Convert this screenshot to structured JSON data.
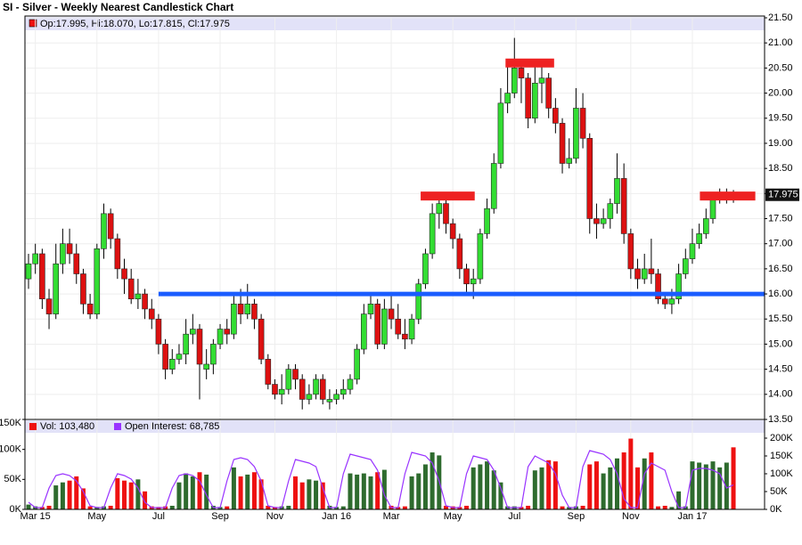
{
  "chart_data": {
    "type": "candlestick",
    "title": "SI - Silver - Weekly Nearest Candlestick Chart",
    "header": "Op:17.995, Hi:18.070, Lo:17.815, Cl:17.975",
    "categories": [
      null,
      "Mar 15",
      null,
      null,
      null,
      null,
      null,
      null,
      null,
      null,
      "May",
      null,
      null,
      null,
      null,
      null,
      null,
      null,
      null,
      "Jul",
      null,
      null,
      null,
      null,
      null,
      null,
      null,
      null,
      "Sep",
      null,
      null,
      null,
      null,
      null,
      null,
      null,
      "Nov",
      null,
      null,
      null,
      null,
      null,
      null,
      null,
      null,
      "Jan 16",
      null,
      null,
      null,
      null,
      null,
      null,
      null,
      "Mar",
      null,
      null,
      null,
      null,
      null,
      null,
      null,
      null,
      "May",
      null,
      null,
      null,
      null,
      null,
      null,
      null,
      null,
      "Jul",
      null,
      null,
      null,
      null,
      null,
      null,
      null,
      null,
      "Sep",
      null,
      null,
      null,
      null,
      null,
      null,
      null,
      "Nov",
      null,
      null,
      null,
      null,
      null,
      null,
      null,
      null,
      "Jan 17",
      null,
      null,
      null,
      null,
      null,
      null
    ],
    "open": [
      16.3,
      16.6,
      16.8,
      15.9,
      15.6,
      16.6,
      17.0,
      16.8,
      16.4,
      15.8,
      15.6,
      16.9,
      17.6,
      17.1,
      16.5,
      16.3,
      15.9,
      16.0,
      15.7,
      15.5,
      15.0,
      14.5,
      14.7,
      14.8,
      15.2,
      15.3,
      14.5,
      14.6,
      15.0,
      15.3,
      15.2,
      15.8,
      15.6,
      15.8,
      15.5,
      14.7,
      14.2,
      14.0,
      14.1,
      14.5,
      14.3,
      13.9,
      14.0,
      14.3,
      13.85,
      13.9,
      14.0,
      14.1,
      14.3,
      14.9,
      15.6,
      15.8,
      15.0,
      15.7,
      15.5,
      15.2,
      15.1,
      15.5,
      16.2,
      16.8,
      17.6,
      17.8,
      17.4,
      17.1,
      16.5,
      16.2,
      16.3,
      17.2,
      17.7,
      18.6,
      19.8,
      20.0,
      20.5,
      20.3,
      19.5,
      20.2,
      20.3,
      19.7,
      19.4,
      18.6,
      18.7,
      19.7,
      19.1,
      17.5,
      17.4,
      17.5,
      17.8,
      18.3,
      17.2,
      16.5,
      16.3,
      16.5,
      16.4,
      15.9,
      15.8,
      15.9,
      16.4,
      16.7,
      17.0,
      17.2,
      17.5,
      17.9,
      17.95,
      17.995
    ],
    "high": [
      16.8,
      17.0,
      16.9,
      16.1,
      17.0,
      17.3,
      17.3,
      17.0,
      16.5,
      16.0,
      17.0,
      17.8,
      17.7,
      17.2,
      16.7,
      16.5,
      16.3,
      16.1,
      15.9,
      15.6,
      15.1,
      14.9,
      15.0,
      15.5,
      15.6,
      15.4,
      14.9,
      15.1,
      15.4,
      15.5,
      16.0,
      16.1,
      16.2,
      15.9,
      15.6,
      14.8,
      14.3,
      14.4,
      14.6,
      14.6,
      14.4,
      14.2,
      14.4,
      14.4,
      14.1,
      14.1,
      14.3,
      14.4,
      15.0,
      15.8,
      16.0,
      15.9,
      15.9,
      16.0,
      15.8,
      15.5,
      15.6,
      16.3,
      16.9,
      17.8,
      17.9,
      17.9,
      17.5,
      17.2,
      16.6,
      16.5,
      17.3,
      17.9,
      18.8,
      20.1,
      20.6,
      21.1,
      20.6,
      20.4,
      20.6,
      20.6,
      20.4,
      19.9,
      19.5,
      19.1,
      20.1,
      20.0,
      19.2,
      17.8,
      17.7,
      17.9,
      18.8,
      18.6,
      17.3,
      16.7,
      16.8,
      17.1,
      16.5,
      16.0,
      16.1,
      16.6,
      16.9,
      17.3,
      17.4,
      17.7,
      18.0,
      18.1,
      18.1,
      18.07
    ],
    "low": [
      16.1,
      16.4,
      15.7,
      15.3,
      15.5,
      16.4,
      16.6,
      16.2,
      15.6,
      15.5,
      15.5,
      16.7,
      16.9,
      16.3,
      16.0,
      15.8,
      15.7,
      15.5,
      15.3,
      14.8,
      14.3,
      14.4,
      14.6,
      14.6,
      15.0,
      13.9,
      14.3,
      14.4,
      14.9,
      15.0,
      15.1,
      15.4,
      15.5,
      15.3,
      14.6,
      14.1,
      13.9,
      13.8,
      14.0,
      14.1,
      13.7,
      13.8,
      13.9,
      13.8,
      13.7,
      13.8,
      13.9,
      14.0,
      14.2,
      14.8,
      15.5,
      14.9,
      14.9,
      15.3,
      15.1,
      14.9,
      15.0,
      15.4,
      16.1,
      16.7,
      17.3,
      17.2,
      16.9,
      16.3,
      16.0,
      15.9,
      16.2,
      17.1,
      17.6,
      18.5,
      19.6,
      19.9,
      19.8,
      19.3,
      19.4,
      19.8,
      19.5,
      19.2,
      18.4,
      18.5,
      18.6,
      18.9,
      17.2,
      17.1,
      17.3,
      17.3,
      17.6,
      17.0,
      16.3,
      16.1,
      16.2,
      16.2,
      15.8,
      15.7,
      15.6,
      15.8,
      16.3,
      16.6,
      16.9,
      17.1,
      17.4,
      17.8,
      17.8,
      17.815
    ],
    "close": [
      16.6,
      16.8,
      15.9,
      15.6,
      16.6,
      17.0,
      16.8,
      16.4,
      15.8,
      15.6,
      16.9,
      17.6,
      17.1,
      16.5,
      16.3,
      15.9,
      16.0,
      15.7,
      15.5,
      15.0,
      14.5,
      14.7,
      14.8,
      15.2,
      15.3,
      14.6,
      14.6,
      15.0,
      15.3,
      15.2,
      15.8,
      15.6,
      15.8,
      15.5,
      14.7,
      14.2,
      14.0,
      14.1,
      14.5,
      14.3,
      13.9,
      14.0,
      14.3,
      13.9,
      13.9,
      14.0,
      14.1,
      14.3,
      14.9,
      15.6,
      15.8,
      15.0,
      15.7,
      15.5,
      15.2,
      15.1,
      15.5,
      16.2,
      16.8,
      17.6,
      17.8,
      17.4,
      17.1,
      16.5,
      16.2,
      16.3,
      17.2,
      17.7,
      18.6,
      19.8,
      20.0,
      20.5,
      20.3,
      19.5,
      20.2,
      20.3,
      19.7,
      19.4,
      18.6,
      18.7,
      19.7,
      19.1,
      17.5,
      17.4,
      17.5,
      17.8,
      18.3,
      17.2,
      16.5,
      16.3,
      16.5,
      16.4,
      15.9,
      15.8,
      15.9,
      16.4,
      16.7,
      17.0,
      17.2,
      17.5,
      17.9,
      17.95,
      17.99,
      17.975
    ],
    "up_color": "#33dd33",
    "down_color": "#dd1111",
    "ylim": [
      13.5,
      21.5
    ],
    "yticks": [
      {
        "value": 13.5,
        "label": "13.50"
      },
      {
        "value": 14.0,
        "label": "14.00"
      },
      {
        "value": 14.5,
        "label": "14.50"
      },
      {
        "value": 15.0,
        "label": "15.00"
      },
      {
        "value": 15.5,
        "label": "15.50"
      },
      {
        "value": 16.0,
        "label": "16.00"
      },
      {
        "value": 16.5,
        "label": "16.50"
      },
      {
        "value": 17.0,
        "label": "17.00"
      },
      {
        "value": 17.5,
        "label": "17.50"
      },
      {
        "value": 18.0,
        "label": "18.00"
      },
      {
        "value": 18.5,
        "label": "18.50"
      },
      {
        "value": 19.0,
        "label": "19.00"
      },
      {
        "value": 19.5,
        "label": "19.50"
      },
      {
        "value": 20.0,
        "label": "20.00"
      },
      {
        "value": 20.5,
        "label": "20.50"
      },
      {
        "value": 21.0,
        "label": "21.00"
      },
      {
        "value": 21.5,
        "label": "21.50"
      }
    ],
    "last_price": {
      "value": 17.975,
      "label": "17.975"
    },
    "lines": [
      {
        "y": 16.0,
        "from": 19.0,
        "to": 107.5,
        "color": "#1a5cff"
      },
      {
        "y": 17.95,
        "from": 57.3,
        "to": 65.2,
        "color": "#ee2222"
      },
      {
        "y": 20.6,
        "from": 69.7,
        "to": 76.8,
        "color": "#ee2222"
      },
      {
        "y": 17.95,
        "from": 98.1,
        "to": 106.2,
        "color": "#ee2222"
      }
    ],
    "volume": {
      "name": "Vol: 103,480",
      "color": "#ee1111",
      "up_color": "#2e6b2e",
      "down_color": "#ee1111",
      "values": [
        8000,
        5000,
        4000,
        6000,
        40000,
        45000,
        48000,
        55000,
        35000,
        5000,
        4000,
        5000,
        6000,
        52000,
        48000,
        45000,
        50000,
        30000,
        5000,
        4000,
        5000,
        6000,
        45000,
        60000,
        55000,
        62000,
        58000,
        6000,
        4000,
        5000,
        70000,
        55000,
        58000,
        62000,
        50000,
        6000,
        4000,
        5000,
        6000,
        55000,
        45000,
        50000,
        48000,
        45000,
        6000,
        4000,
        5000,
        60000,
        58000,
        60000,
        55000,
        62000,
        66000,
        6000,
        4000,
        5000,
        55000,
        60000,
        75000,
        95000,
        90000,
        6000,
        5000,
        4000,
        6000,
        70000,
        75000,
        80000,
        65000,
        45000,
        5000,
        5000,
        4000,
        6000,
        65000,
        70000,
        82000,
        80000,
        5000,
        4000,
        5000,
        6000,
        75000,
        80000,
        60000,
        70000,
        85000,
        95000,
        118000,
        70000,
        85000,
        95000,
        5000,
        6000,
        4000,
        30000,
        5000,
        80000,
        78000,
        75000,
        80000,
        70000,
        78000,
        103480
      ]
    },
    "open_interest": {
      "name": "Open Interest: 68,785",
      "color": "#9933ff",
      "axis": "y2",
      "values": [
        20000,
        5000,
        5000,
        60000,
        95000,
        100000,
        95000,
        80000,
        50000,
        10000,
        5000,
        5000,
        60000,
        100000,
        95000,
        85000,
        60000,
        20000,
        5000,
        5000,
        5000,
        60000,
        95000,
        100000,
        95000,
        80000,
        40000,
        5000,
        5000,
        80000,
        140000,
        145000,
        140000,
        120000,
        80000,
        10000,
        5000,
        5000,
        80000,
        140000,
        135000,
        130000,
        120000,
        60000,
        5000,
        5000,
        100000,
        155000,
        150000,
        145000,
        140000,
        110000,
        40000,
        5000,
        5000,
        100000,
        160000,
        155000,
        150000,
        130000,
        80000,
        10000,
        5000,
        5000,
        100000,
        150000,
        145000,
        140000,
        110000,
        60000,
        5000,
        5000,
        5000,
        120000,
        150000,
        140000,
        130000,
        100000,
        40000,
        5000,
        5000,
        120000,
        165000,
        160000,
        155000,
        140000,
        100000,
        30000,
        5000,
        5000,
        100000,
        130000,
        120000,
        110000,
        50000,
        5000,
        5000,
        110000,
        115000,
        115000,
        110000,
        100000,
        60000,
        68785
      ]
    },
    "vlim": [
      0,
      150000
    ],
    "vticks": [
      {
        "value": 0,
        "label": "0K"
      },
      {
        "value": 50000,
        "label": "50K"
      },
      {
        "value": 100000,
        "label": "100K"
      },
      {
        "value": 150000,
        "label": "150K"
      }
    ],
    "y2lim": [
      0,
      252500
    ],
    "y2ticks": [
      {
        "value": 0,
        "label": "0K"
      },
      {
        "value": 50000,
        "label": "50K"
      },
      {
        "value": 100000,
        "label": "100K"
      },
      {
        "value": 150000,
        "label": "150K"
      },
      {
        "value": 200000,
        "label": "200K"
      }
    ],
    "grid": true
  }
}
